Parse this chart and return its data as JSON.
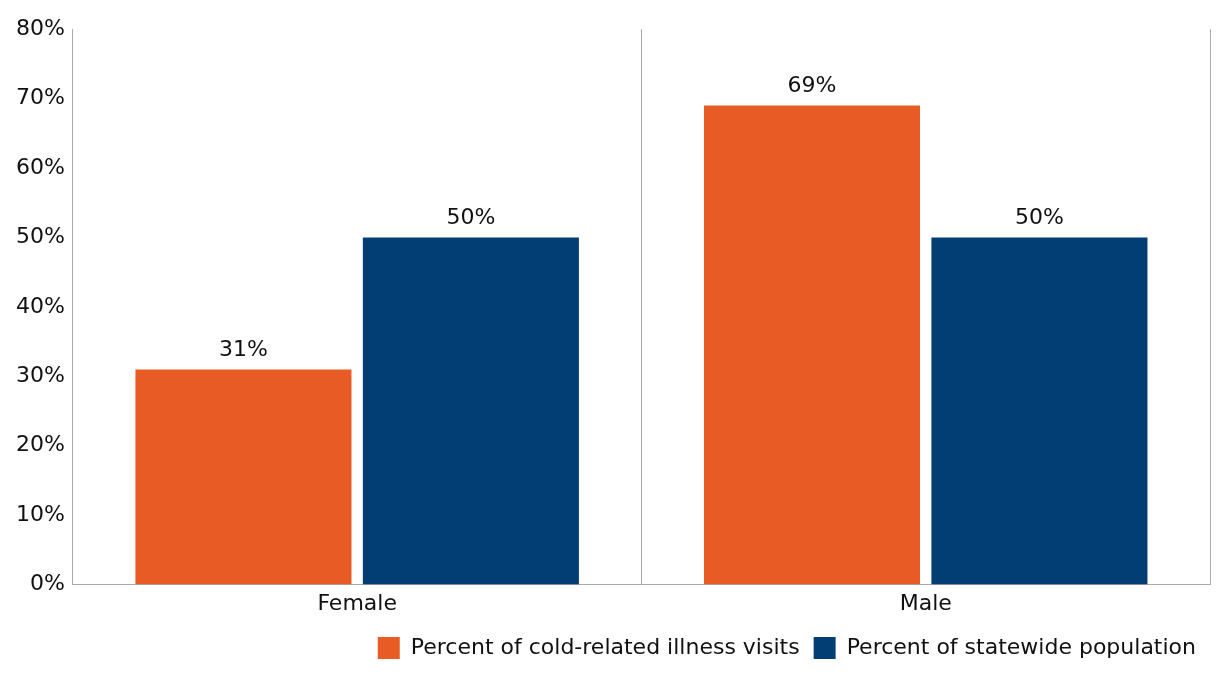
{
  "chart_data": {
    "type": "bar",
    "categories": [
      "Female",
      "Male"
    ],
    "series": [
      {
        "name": "Percent of cold-related illness visits",
        "color": "#e95b24",
        "values": [
          31,
          69
        ],
        "value_labels": [
          "31%",
          "69%"
        ]
      },
      {
        "name": "Percent of statewide population",
        "color": "#023e74",
        "values": [
          50,
          50
        ],
        "value_labels": [
          "50%",
          "50%"
        ]
      }
    ],
    "ylim": [
      0,
      80
    ],
    "yticks": [
      {
        "value": 0,
        "label": "0%"
      },
      {
        "value": 10,
        "label": "10%"
      },
      {
        "value": 20,
        "label": "20%"
      },
      {
        "value": 30,
        "label": "30%"
      },
      {
        "value": 40,
        "label": "40%"
      },
      {
        "value": 50,
        "label": "50%"
      },
      {
        "value": 60,
        "label": "60%"
      },
      {
        "value": 70,
        "label": "70%"
      },
      {
        "value": 80,
        "label": "80%"
      }
    ],
    "grid": "x",
    "legend": "bottom right"
  }
}
